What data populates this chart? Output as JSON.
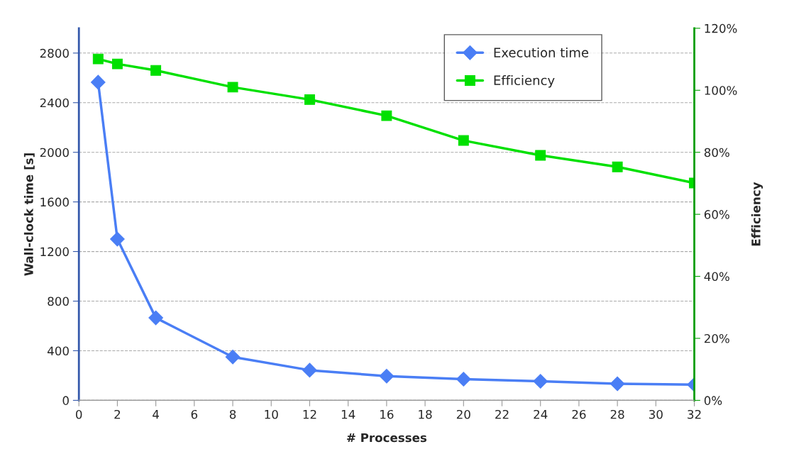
{
  "chart_data": {
    "type": "line",
    "xlabel": "# Processes",
    "ylabel": "Wall-clock time [s]",
    "y2label": "Efficiency",
    "x": [
      1,
      2,
      4,
      8,
      12,
      16,
      20,
      24,
      28,
      32
    ],
    "series": [
      {
        "name": "Execution time",
        "color": "#4a7ef5",
        "marker": "diamond",
        "values": [
          2565,
          1300,
          665,
          350,
          243,
          195,
          171,
          154,
          134,
          127
        ]
      },
      {
        "name": "Efficiency",
        "color": "#00e000",
        "marker": "square",
        "axis": "y2",
        "values": [
          110.1,
          108.5,
          106.4,
          101,
          97,
          91.8,
          83.8,
          79,
          75.3,
          70.1
        ]
      }
    ],
    "xlim": [
      0,
      32
    ],
    "xticks": [
      0,
      2,
      4,
      6,
      8,
      10,
      12,
      14,
      16,
      18,
      20,
      22,
      24,
      26,
      28,
      30,
      32
    ],
    "ylim": [
      0,
      3000
    ],
    "yticks": [
      0,
      400,
      800,
      1200,
      1600,
      2000,
      2400,
      2800
    ],
    "y2lim": [
      0,
      120
    ],
    "y2ticks": [
      {
        "value": 0,
        "label": "0%"
      },
      {
        "value": 20,
        "label": "20%"
      },
      {
        "value": 40,
        "label": "40%"
      },
      {
        "value": 60,
        "label": "60%"
      },
      {
        "value": 80,
        "label": "80%"
      },
      {
        "value": 100,
        "label": "100%"
      },
      {
        "value": 120,
        "label": "120%"
      }
    ],
    "grid": "y",
    "legend": "top right"
  }
}
